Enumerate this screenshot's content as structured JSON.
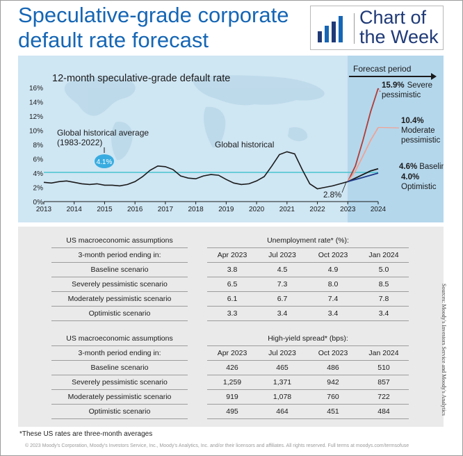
{
  "header": {
    "title_line1": "Speculative-grade corporate",
    "title_line2": "default rate forecast",
    "badge_line1": "Chart of",
    "badge_line2": "the Week"
  },
  "colors": {
    "title_blue": "#1566b5",
    "chart_bg": "#cfe6f3",
    "forecast_bg": "#b4d7ec",
    "average_line": "#49c3cf",
    "historical_line": "#1a1a1a",
    "severe": "#b33b34",
    "moderate": "#f0a294",
    "baseline": "#1a1a1a",
    "optimistic": "#1f3a8a",
    "badge_bubble": "#38ace0"
  },
  "chart_data": {
    "type": "line",
    "title": "12-month speculative-grade default rate",
    "ylim": [
      0,
      16
    ],
    "xlim": [
      2013,
      2024
    ],
    "x_ticks": [
      "2013",
      "2014",
      "2015",
      "2016",
      "2017",
      "2018",
      "2019",
      "2020",
      "2021",
      "2022",
      "2023",
      "2024"
    ],
    "y_ticks": [
      "0%",
      "2%",
      "4%",
      "6%",
      "8%",
      "10%",
      "12%",
      "14%",
      "16%"
    ],
    "forecast_label": "Forecast period",
    "average": {
      "label_line1": "Global historical average",
      "label_line2": "(1983-2022)",
      "value": 4.1,
      "value_label": "4.1%"
    },
    "historical": {
      "name": "Global historical",
      "x": [
        2013.0,
        2013.25,
        2013.5,
        2013.75,
        2014.0,
        2014.25,
        2014.5,
        2014.75,
        2015.0,
        2015.25,
        2015.5,
        2015.75,
        2016.0,
        2016.25,
        2016.5,
        2016.75,
        2017.0,
        2017.25,
        2017.5,
        2017.75,
        2018.0,
        2018.25,
        2018.5,
        2018.75,
        2019.0,
        2019.25,
        2019.5,
        2019.75,
        2020.0,
        2020.25,
        2020.5,
        2020.75,
        2021.0,
        2021.25,
        2021.5,
        2021.75,
        2022.0,
        2022.25,
        2022.5,
        2022.75,
        2023.0
      ],
      "y": [
        2.7,
        2.6,
        2.8,
        2.9,
        2.7,
        2.5,
        2.4,
        2.5,
        2.3,
        2.3,
        2.2,
        2.4,
        2.8,
        3.5,
        4.4,
        5.0,
        4.9,
        4.5,
        3.6,
        3.3,
        3.2,
        3.6,
        3.8,
        3.7,
        3.1,
        2.6,
        2.4,
        2.5,
        2.9,
        3.5,
        5.0,
        6.6,
        7.0,
        6.7,
        4.5,
        2.5,
        1.8,
        2.0,
        2.2,
        2.5,
        2.8
      ],
      "end_label": "2.8%"
    },
    "forecasts": [
      {
        "name": "Severe pessimistic",
        "value_label": "15.9%",
        "line1": "Severe",
        "line2": "pessimistic",
        "x": [
          2023.0,
          2023.25,
          2023.5,
          2023.75,
          2024.0
        ],
        "y": [
          2.8,
          5.0,
          8.6,
          12.6,
          15.9
        ]
      },
      {
        "name": "Moderate pessimistic",
        "value_label": "10.4%",
        "line1": "Moderate",
        "line2": "pessimistic",
        "x": [
          2023.0,
          2023.25,
          2023.5,
          2023.75,
          2024.0
        ],
        "y": [
          2.8,
          4.3,
          6.4,
          8.6,
          10.4
        ]
      },
      {
        "name": "Baseline",
        "value_label": "4.6%",
        "line1": "Baseline",
        "line2": "",
        "x": [
          2023.0,
          2023.25,
          2023.5,
          2023.75,
          2024.0
        ],
        "y": [
          2.8,
          3.3,
          3.8,
          4.3,
          4.6
        ]
      },
      {
        "name": "Optimistic",
        "value_label": "4.0%",
        "line1": "Optimistic",
        "line2": "",
        "x": [
          2023.0,
          2023.25,
          2023.5,
          2023.75,
          2024.0
        ],
        "y": [
          2.8,
          3.1,
          3.4,
          3.7,
          4.0
        ]
      }
    ]
  },
  "tables": [
    {
      "left_header": "US macroeconomic assumptions",
      "right_header": "Unemployment rate* (%):",
      "period_label": "3-month period ending in:",
      "columns": [
        "Apr 2023",
        "Jul 2023",
        "Oct 2023",
        "Jan 2024"
      ],
      "rows": [
        {
          "label": "Baseline scenario",
          "values": [
            "3.8",
            "4.5",
            "4.9",
            "5.0"
          ]
        },
        {
          "label": "Severely pessimistic scenario",
          "values": [
            "6.5",
            "7.3",
            "8.0",
            "8.5"
          ]
        },
        {
          "label": "Moderately pessimistic scenario",
          "values": [
            "6.1",
            "6.7",
            "7.4",
            "7.8"
          ]
        },
        {
          "label": "Optimistic scenario",
          "values": [
            "3.3",
            "3.4",
            "3.4",
            "3.4"
          ]
        }
      ]
    },
    {
      "left_header": "US macroeconomic assumptions",
      "right_header": "High-yield spread* (bps):",
      "period_label": "3-month period ending in:",
      "columns": [
        "Apr 2023",
        "Jul 2023",
        "Oct 2023",
        "Jan 2024"
      ],
      "rows": [
        {
          "label": "Baseline scenario",
          "values": [
            "426",
            "465",
            "486",
            "510"
          ]
        },
        {
          "label": "Severely pessimistic scenario",
          "values": [
            "1,259",
            "1,371",
            "942",
            "857"
          ]
        },
        {
          "label": "Moderately pessimistic scenario",
          "values": [
            "919",
            "1,078",
            "760",
            "722"
          ]
        },
        {
          "label": "Optimistic scenario",
          "values": [
            "495",
            "464",
            "451",
            "484"
          ]
        }
      ]
    }
  ],
  "footer": {
    "footnote": "*These US rates are three-month averages",
    "copyright": "© 2023 Moody's Corporation, Moody's Investors Service, Inc., Moody's Analytics, Inc. and/or their licensors and affiliates. All rights reserved. Full terms at  moodys.com/termsofuse",
    "sources": "Sources: Moody's Investors Service and Moody's Analytics"
  }
}
